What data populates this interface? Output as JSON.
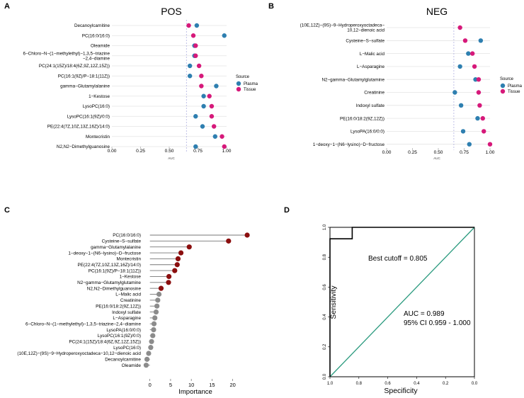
{
  "panels": {
    "a": {
      "letter": "A",
      "chart_data": {
        "type": "scatter",
        "title": "POS",
        "xlabel": "AUC",
        "xlim": [
          0,
          1
        ],
        "xticks": [
          "0.00",
          "0.25",
          "0.50",
          "0.75",
          "1.00"
        ],
        "reference_line": 0.65,
        "legend": {
          "title": "Source",
          "entries": [
            "Plasma",
            "Tissue"
          ],
          "placement": "right"
        },
        "categories": [
          [
            "Decanoylcarnitine"
          ],
          [
            "PC(16:0/16:0)"
          ],
          [
            "Oleamide"
          ],
          [
            "6−Chloro−N−(1−methylethyl)−1,3,5−triazine",
            "−2,4−diamine"
          ],
          [
            "PC(24:1(15Z)/18:4(6Z,9Z,12Z,15Z))"
          ],
          [
            "PC(16:1(9Z)/P−18:1(11Z))"
          ],
          [
            "gamma−Glutamylalanine"
          ],
          [
            "1−Kestose"
          ],
          [
            "LysoPC(16:0)"
          ],
          [
            "LysoPC(16:1(9Z)/0:0)"
          ],
          [
            "PE(22:4(7Z,10Z,13Z,16Z)/14:0)"
          ],
          [
            "Montecristin"
          ],
          [
            "N2,N2−Dimethylguanosine"
          ]
        ],
        "series": [
          {
            "name": "Plasma",
            "color": "#2e7fb0",
            "values": [
              0.74,
              0.98,
              0.72,
              0.72,
              0.68,
              0.68,
              0.91,
              0.8,
              0.8,
              0.73,
              0.79,
              0.9,
              0.73
            ]
          },
          {
            "name": "Tissue",
            "color": "#d6197a",
            "values": [
              0.67,
              0.71,
              0.73,
              0.73,
              0.76,
              0.78,
              0.78,
              0.85,
              0.87,
              0.87,
              0.89,
              0.96,
              0.98
            ]
          }
        ]
      }
    },
    "b": {
      "letter": "B",
      "chart_data": {
        "type": "scatter",
        "title": "NEG",
        "xlabel": "AUC",
        "xlim": [
          0,
          1
        ],
        "xticks": [
          "0.00",
          "0.25",
          "0.50",
          "0.75",
          "1.00"
        ],
        "reference_line": 0.65,
        "legend": {
          "title": "Source",
          "entries": [
            "Plasma",
            "Tissue"
          ],
          "placement": "right"
        },
        "categories": [
          [
            "(10E,12Z)−(9S)−9−Hydroperoxyoctadeca−",
            "10,12−dienoic acid"
          ],
          [
            "Cysteine−S−sulfate"
          ],
          [
            "L−Malic acid"
          ],
          [
            "L−Asparagine"
          ],
          [
            "N2−gamma−Glutamylglutamine"
          ],
          [
            "Creatinine"
          ],
          [
            "Indoxyl sulfate"
          ],
          [
            "PE(16:0/18:2(9Z,12Z))"
          ],
          [
            "LysoPA(16:0/0:0)"
          ],
          [
            "1−deoxy−1−(N6−lysino)−D−fructose"
          ]
        ],
        "series": [
          {
            "name": "Plasma",
            "color": "#2e7fb0",
            "values": [
              null,
              0.91,
              0.79,
              0.71,
              0.86,
              0.66,
              0.72,
              0.88,
              0.74,
              0.8
            ]
          },
          {
            "name": "Tissue",
            "color": "#d6197a",
            "values": [
              0.71,
              0.76,
              0.83,
              0.85,
              0.89,
              0.89,
              0.9,
              0.93,
              0.94,
              1.0
            ]
          }
        ]
      }
    },
    "c": {
      "letter": "C",
      "chart_data": {
        "type": "lollipop",
        "xlabel": "Importance",
        "xlim": [
          -2,
          24
        ],
        "xticks": [
          0,
          5,
          10,
          15,
          20
        ],
        "colors": {
          "high": "#8b0e0e",
          "low": "#8c8c8c"
        },
        "categories": [
          "PC(16:0/16:0)",
          "Cysteine−S−sulfate",
          "gamma−Glutamylalanine",
          "1−deoxy−1−(N6−lysino)−D−fructose",
          "Montecristin",
          "PE(22:4(7Z,10Z,13Z,16Z)/14:0)",
          "PC(16:1(9Z)/P−18:1(11Z))",
          "1−Kestose",
          "N2−gamma−Glutamylglutamine",
          "N2,N2−Dimethylguanosine",
          "L−Malic acid",
          "Creatinine",
          "PE(16:0/18:2(9Z,12Z))",
          "Indoxyl sulfate",
          "L−Asparagine",
          "6−Chloro−N−(1−methylethyl)−1,3,5−triazine−2,4−diamine",
          "LysoPA(16:0/0:0)",
          "LysoPC(16:1(9Z)/0:0)",
          "PC(24:1(15Z)/18:4(6Z,9Z,12Z,15Z))",
          "LysoPC(16:0)",
          "(10E,12Z)−(9S)−9−Hydroperoxyoctadeca−10,12−dienoic acid",
          "Decanoylcarnitine",
          "Oleamide"
        ],
        "values": [
          23.5,
          19.0,
          9.5,
          7.5,
          6.8,
          6.6,
          6.0,
          4.6,
          4.5,
          2.7,
          2.2,
          1.9,
          1.7,
          1.5,
          1.2,
          1.0,
          0.9,
          0.7,
          0.4,
          0.2,
          -0.3,
          -0.7,
          -0.9
        ],
        "highlight": [
          true,
          true,
          true,
          true,
          true,
          true,
          true,
          true,
          true,
          true,
          false,
          false,
          false,
          false,
          false,
          false,
          false,
          false,
          false,
          false,
          false,
          false,
          false
        ]
      }
    },
    "d": {
      "letter": "D",
      "chart_data": {
        "type": "line",
        "xlabel": "Specificity",
        "ylabel": "Sensitivity",
        "xlim": [
          1.0,
          0.0
        ],
        "ylim": [
          0.0,
          1.0
        ],
        "xticks": [
          "1.0",
          "0.8",
          "0.6",
          "0.4",
          "0.2",
          "0.0"
        ],
        "yticks": [
          "0.0",
          "0.2",
          "0.4",
          "0.6",
          "0.8",
          "1.0"
        ],
        "roc": {
          "specificity": [
            1.0,
            1.0,
            0.846,
            0.846,
            0.0
          ],
          "sensitivity": [
            0.0,
            0.923,
            0.923,
            1.0,
            1.0
          ],
          "color": "#000000"
        },
        "reference": {
          "color": "#2a9a7e"
        },
        "annotations": {
          "cutoff": "Best cutoff = 0.805",
          "auc": "AUC = 0.989",
          "ci": "95% CI 0.959 - 1.000"
        }
      }
    }
  }
}
